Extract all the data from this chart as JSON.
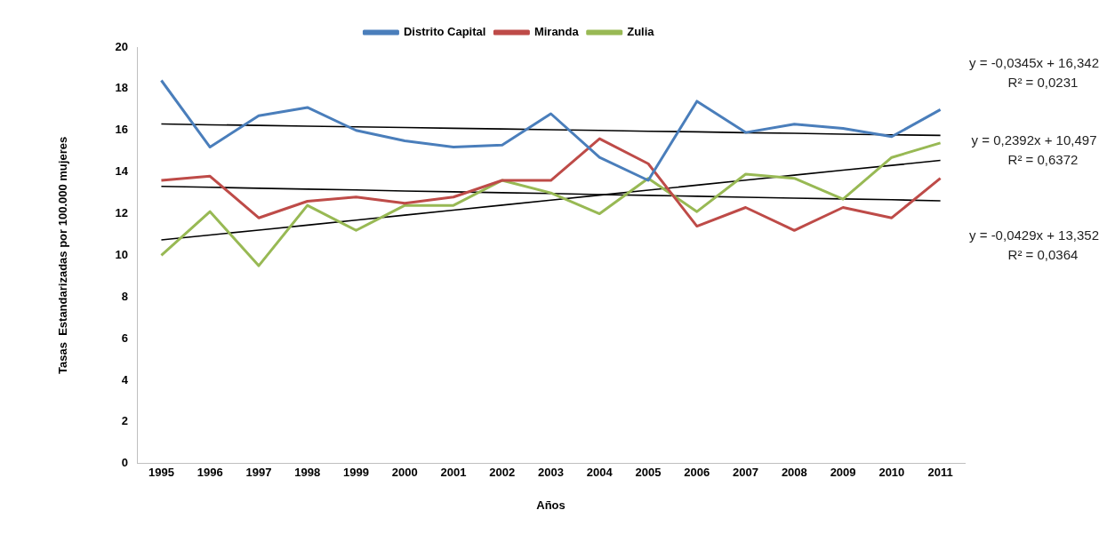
{
  "chart_data": {
    "type": "line",
    "xlabel": "Años",
    "ylabel": "Tasas  Estandarizadas por 100.000 mujeres",
    "x": [
      1995,
      1996,
      1997,
      1998,
      1999,
      2000,
      2001,
      2002,
      2003,
      2004,
      2005,
      2006,
      2007,
      2008,
      2009,
      2010,
      2011
    ],
    "xlim": [
      1994.5,
      2011.5
    ],
    "xticks": [
      1995,
      1996,
      1997,
      1998,
      1999,
      2000,
      2001,
      2002,
      2003,
      2004,
      2005,
      2006,
      2007,
      2008,
      2009,
      2010,
      2011
    ],
    "ylim": [
      0,
      20
    ],
    "yticks": [
      0,
      2,
      4,
      6,
      8,
      10,
      12,
      14,
      16,
      18,
      20
    ],
    "grid": false,
    "legend": "top",
    "marker": "none",
    "line_style": "solid",
    "series": [
      {
        "name": "Distrito Capital",
        "color": "#4a7ebb",
        "values": [
          18.4,
          15.2,
          16.7,
          17.1,
          16.0,
          15.5,
          15.2,
          15.3,
          16.8,
          14.7,
          13.6,
          17.4,
          15.9,
          16.3,
          16.1,
          15.7,
          17.0
        ]
      },
      {
        "name": "Miranda",
        "color": "#be4b48",
        "values": [
          13.6,
          13.8,
          11.8,
          12.6,
          12.8,
          12.5,
          12.8,
          13.6,
          13.6,
          15.6,
          14.4,
          11.4,
          12.3,
          11.2,
          12.3,
          11.8,
          13.7
        ]
      },
      {
        "name": "Zulia",
        "color": "#98b954",
        "values": [
          10.0,
          12.1,
          9.5,
          12.4,
          11.2,
          12.4,
          12.4,
          13.6,
          13.0,
          12.0,
          13.7,
          12.1,
          13.9,
          13.7,
          12.7,
          14.7,
          15.4
        ]
      },
      {
        "type": "line",
        "color": "#000000",
        "values": [
          16.31,
          16.27,
          16.24,
          16.2,
          16.17,
          16.14,
          16.1,
          16.07,
          16.03,
          16.0,
          15.96,
          15.93,
          15.89,
          15.86,
          15.82,
          15.79,
          15.76
        ]
      },
      {
        "type": "line",
        "color": "#000000",
        "values": [
          10.74,
          10.98,
          11.21,
          11.45,
          11.69,
          11.93,
          12.17,
          12.41,
          12.65,
          12.89,
          13.13,
          13.37,
          13.61,
          13.85,
          14.09,
          14.32,
          14.56
        ]
      },
      {
        "type": "line",
        "color": "#000000",
        "values": [
          13.31,
          13.27,
          13.22,
          13.18,
          13.14,
          13.09,
          13.05,
          13.01,
          12.97,
          12.92,
          12.88,
          12.84,
          12.79,
          12.75,
          12.71,
          12.67,
          12.62
        ]
      }
    ],
    "annotations": [
      "y = -0,0345x + 16,342",
      "R² = 0,0231",
      "y = 0,2392x + 10,497",
      "R² = 0,6372",
      "y = -0,0429x + 13,352",
      "R² = 0,0364"
    ]
  }
}
